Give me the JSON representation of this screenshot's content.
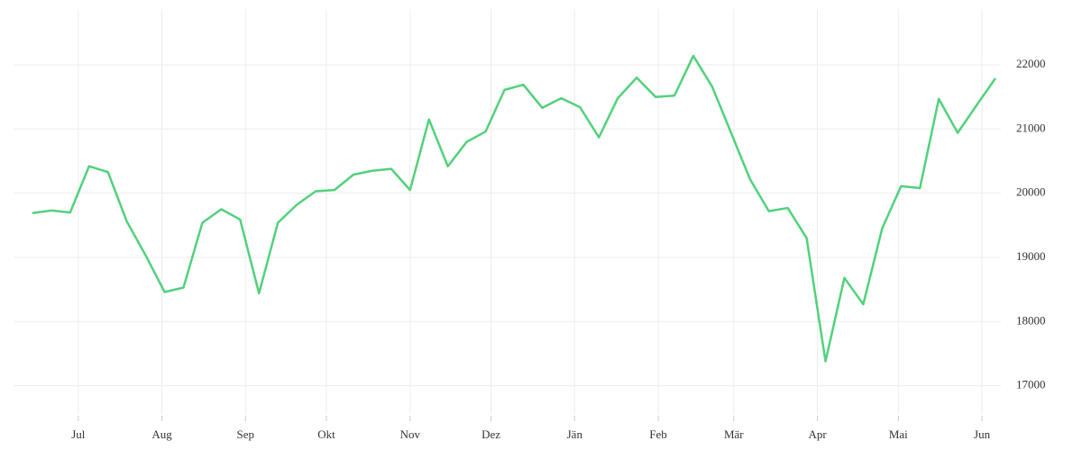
{
  "chart_data": {
    "type": "line",
    "x": [
      -17,
      -10,
      -3,
      4,
      11,
      18,
      25,
      32,
      39,
      46,
      53,
      60,
      67,
      74,
      81,
      88,
      95,
      102,
      109,
      116,
      123,
      130,
      137,
      144,
      151,
      158,
      165,
      172,
      179,
      186,
      193,
      200,
      207,
      214,
      221,
      228,
      235,
      242,
      249,
      256,
      263,
      270,
      277,
      284,
      291,
      298,
      305,
      312,
      319,
      326,
      333,
      340
    ],
    "series": [
      {
        "color": "#52d17c",
        "values": [
          19690,
          19730,
          19700,
          20420,
          20330,
          19560,
          19030,
          18460,
          18530,
          19540,
          19750,
          19590,
          18440,
          19540,
          19820,
          20030,
          20050,
          20290,
          20350,
          20380,
          20050,
          21150,
          20420,
          20800,
          20960,
          21610,
          21690,
          21330,
          21480,
          21340,
          20870,
          21480,
          21800,
          21500,
          21520,
          22140,
          21660,
          20940,
          20220,
          19720,
          19770,
          19300,
          17380,
          18680,
          18270,
          19450,
          20110,
          20080,
          21470,
          20940,
          21370,
          21790
        ]
      }
    ],
    "xlim": [
      -24,
      342
    ],
    "xticks": [
      {
        "value": 0,
        "label": "Jul"
      },
      {
        "value": 31,
        "label": "Aug"
      },
      {
        "value": 62,
        "label": "Sep"
      },
      {
        "value": 92,
        "label": "Okt"
      },
      {
        "value": 123,
        "label": "Nov"
      },
      {
        "value": 153,
        "label": "Dez"
      },
      {
        "value": 184,
        "label": "Jän"
      },
      {
        "value": 215,
        "label": "Feb"
      },
      {
        "value": 243,
        "label": "Mär"
      },
      {
        "value": 274,
        "label": "Apr"
      },
      {
        "value": 304,
        "label": "Mai"
      },
      {
        "value": 335,
        "label": "Jun"
      }
    ],
    "ylim": [
      16560,
      22870
    ],
    "yticks": [
      17000,
      18000,
      19000,
      20000,
      21000,
      22000
    ],
    "grid": true
  }
}
